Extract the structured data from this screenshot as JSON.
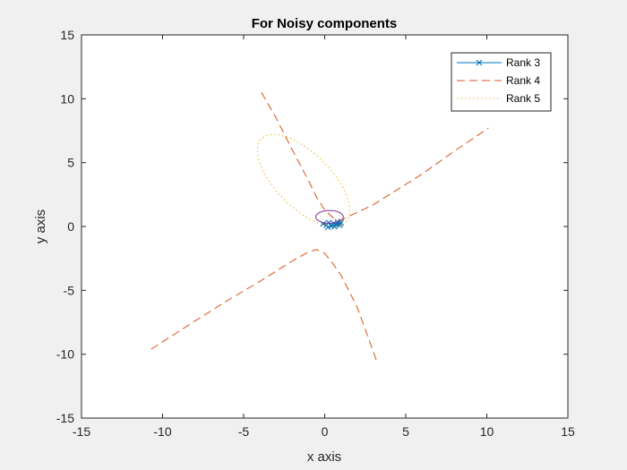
{
  "chart_data": {
    "type": "line",
    "title": "For Noisy components",
    "xlabel": "x axis",
    "ylabel": "y axis",
    "xlim": [
      -15,
      15
    ],
    "ylim": [
      -15,
      15
    ],
    "xticks": [
      -15,
      -10,
      -5,
      0,
      5,
      10,
      15
    ],
    "yticks": [
      -15,
      -10,
      -5,
      0,
      5,
      10,
      15
    ],
    "grid": false,
    "legend_position": "top-right",
    "series": [
      {
        "name": "Rank 3",
        "color": "#0072BD",
        "style": "solid",
        "marker": "x",
        "points": [
          [
            -0.1,
            0.2
          ],
          [
            0.1,
            0.1
          ],
          [
            0.25,
            0.3
          ],
          [
            0.4,
            0.05
          ],
          [
            0.55,
            0.25
          ],
          [
            0.7,
            0.15
          ],
          [
            0.8,
            0.35
          ],
          [
            0.9,
            0.1
          ],
          [
            1.0,
            0.3
          ],
          [
            0.2,
            -0.05
          ],
          [
            0.6,
            0.0
          ],
          [
            0.95,
            0.2
          ]
        ]
      },
      {
        "name": "Rank 4",
        "color": "#D95319",
        "style": "dashed",
        "branches": [
          [
            [
              -3.9,
              10.5
            ],
            [
              -3,
              8.5
            ],
            [
              -2,
              6
            ],
            [
              -1,
              3.6
            ],
            [
              -0.5,
              2.3
            ],
            [
              0,
              1.3
            ],
            [
              0.5,
              0.7
            ],
            [
              1,
              0.5
            ],
            [
              2,
              1.1
            ],
            [
              3,
              1.7
            ],
            [
              4,
              2.5
            ],
            [
              6,
              4.1
            ],
            [
              8,
              5.9
            ],
            [
              10.1,
              7.7
            ]
          ],
          [
            [
              -10.7,
              -9.6
            ],
            [
              -8,
              -7.4
            ],
            [
              -6,
              -5.8
            ],
            [
              -4,
              -4.3
            ],
            [
              -2,
              -2.7
            ],
            [
              -1,
              -2
            ],
            [
              -0.5,
              -1.8
            ],
            [
              0,
              -2.1
            ],
            [
              0.5,
              -2.9
            ],
            [
              1,
              -3.8
            ],
            [
              2,
              -6.3
            ],
            [
              3.2,
              -10.5
            ]
          ]
        ]
      },
      {
        "name": "Rank 5",
        "color": "#EDB120",
        "style": "dotted",
        "ellipse": {
          "cx": -1.3,
          "cy": 3.6,
          "rx": 4.2,
          "ry": 1.85,
          "rotation_deg": -55
        }
      },
      {
        "color": "#7E2F8E",
        "style": "solid",
        "ellipse": {
          "cx": 0.3,
          "cy": 0.75,
          "rx": 0.85,
          "ry": 0.5,
          "rotation_deg": 0
        }
      }
    ]
  }
}
